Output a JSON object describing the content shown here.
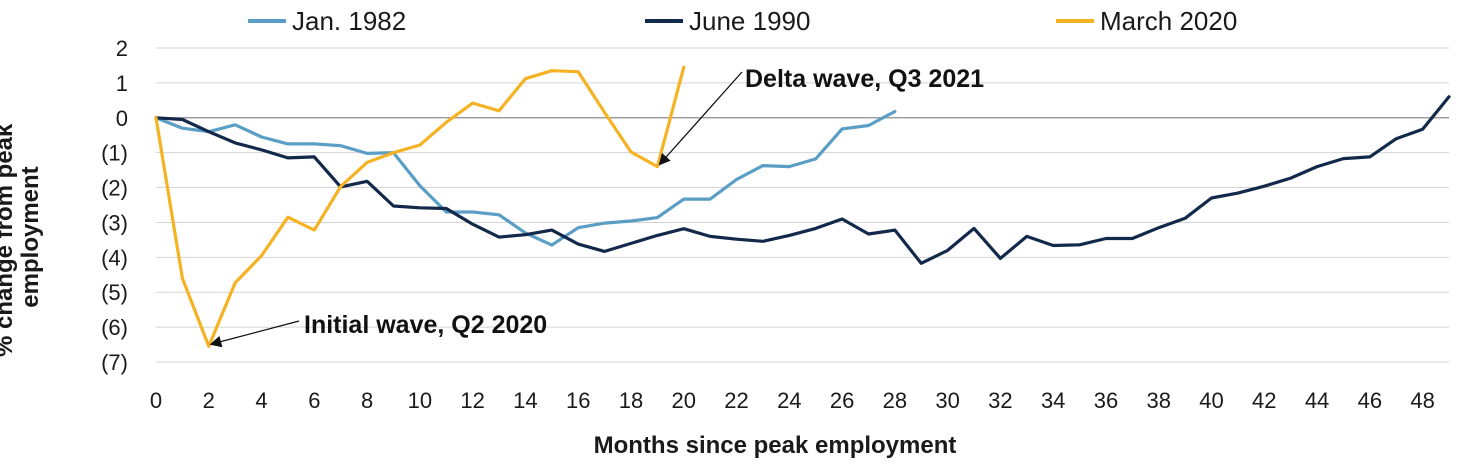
{
  "chart_data": {
    "type": "line",
    "xlabel": "Months since peak employment",
    "ylabel": "% change from peak employment",
    "xlim": [
      0,
      49
    ],
    "ylim": [
      -7,
      2
    ],
    "x_ticks": [
      0,
      2,
      4,
      6,
      8,
      10,
      12,
      14,
      16,
      18,
      20,
      22,
      24,
      26,
      28,
      30,
      32,
      34,
      36,
      38,
      40,
      42,
      44,
      46,
      48
    ],
    "x_tick_labels": [
      "0",
      "2",
      "4",
      "6",
      "8",
      "10",
      "12",
      "14",
      "16",
      "18",
      "20",
      "22",
      "24",
      "26",
      "28",
      "30",
      "32",
      "34",
      "36",
      "38",
      "40",
      "42",
      "44",
      "46",
      "48"
    ],
    "y_ticks": [
      2,
      1,
      0,
      -1,
      -2,
      -3,
      -4,
      -5,
      -6,
      -7
    ],
    "y_tick_labels": [
      "2",
      "1",
      "0",
      "(1)",
      "(2)",
      "(3)",
      "(4)",
      "(5)",
      "(6)",
      "(7)"
    ],
    "grid": "horizontal",
    "legend_position": "top",
    "series": [
      {
        "name": "Jan. 1982",
        "color": "#5b9ec5",
        "x": [
          0,
          1,
          2,
          3,
          4,
          5,
          6,
          7,
          8,
          9,
          10,
          11,
          12,
          13,
          14,
          15,
          16,
          17,
          18,
          19,
          20,
          21,
          22,
          23,
          24,
          25,
          26,
          27,
          28
        ],
        "y": [
          0,
          -0.3,
          -0.4,
          -0.2,
          -0.55,
          -0.75,
          -0.75,
          -0.8,
          -1.02,
          -1.0,
          -1.95,
          -2.7,
          -2.7,
          -2.78,
          -3.3,
          -3.65,
          -3.15,
          -3.02,
          -2.96,
          -2.86,
          -2.33,
          -2.33,
          -1.77,
          -1.37,
          -1.4,
          -1.18,
          -0.32,
          -0.22,
          0.18
        ]
      },
      {
        "name": "June 1990",
        "color": "#12294b",
        "x": [
          0,
          1,
          2,
          3,
          4,
          5,
          6,
          7,
          8,
          9,
          10,
          11,
          12,
          13,
          14,
          15,
          16,
          17,
          18,
          19,
          20,
          21,
          22,
          23,
          24,
          25,
          26,
          27,
          28,
          29,
          30,
          31,
          32,
          33,
          34,
          35,
          36,
          37,
          38,
          39,
          40,
          41,
          42,
          43,
          44,
          45,
          46,
          47,
          48,
          49
        ],
        "y": [
          0,
          -0.05,
          -0.4,
          -0.72,
          -0.92,
          -1.15,
          -1.12,
          -1.98,
          -1.82,
          -2.53,
          -2.58,
          -2.6,
          -3.05,
          -3.42,
          -3.35,
          -3.22,
          -3.62,
          -3.83,
          -3.6,
          -3.37,
          -3.18,
          -3.4,
          -3.48,
          -3.54,
          -3.37,
          -3.17,
          -2.9,
          -3.33,
          -3.22,
          -4.17,
          -3.8,
          -3.17,
          -4.03,
          -3.4,
          -3.66,
          -3.64,
          -3.46,
          -3.46,
          -3.15,
          -2.88,
          -2.3,
          -2.16,
          -1.96,
          -1.73,
          -1.4,
          -1.17,
          -1.12,
          -0.6,
          -0.33,
          0.6
        ]
      },
      {
        "name": "March 2020",
        "color": "#f5b324",
        "x": [
          0,
          1,
          2,
          3,
          4,
          5,
          6,
          7,
          8,
          9,
          10,
          11,
          12,
          13,
          14,
          15,
          16,
          17,
          18,
          19,
          20
        ],
        "y": [
          0,
          -4.6,
          -6.55,
          -4.73,
          -3.95,
          -2.85,
          -3.22,
          -1.97,
          -1.28,
          -1.0,
          -0.78,
          -0.13,
          0.42,
          0.2,
          1.12,
          1.35,
          1.32,
          0.15,
          -0.98,
          -1.4,
          1.45
        ]
      }
    ],
    "annotations": [
      {
        "text": "Delta wave, Q3 2021",
        "points_to": [
          19,
          -1.4
        ]
      },
      {
        "text": "Initial wave, Q2 2020",
        "points_to": [
          2,
          -6.55
        ]
      }
    ]
  }
}
